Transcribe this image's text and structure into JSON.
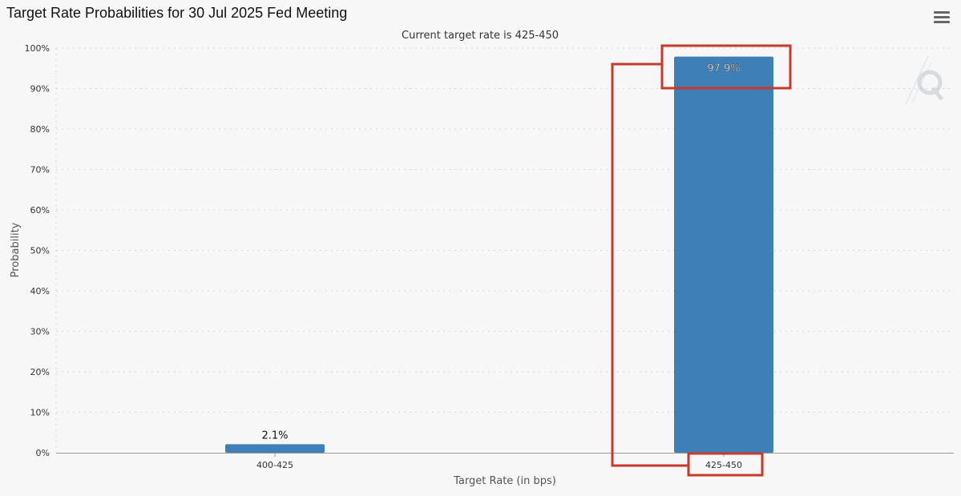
{
  "menu_icon": "hamburger-menu-icon",
  "watermark_icon": "q-logo-icon",
  "colors": {
    "bar": "#3f7fb8",
    "highlight": "#c8392b",
    "grid": "#d6d6d6",
    "axis": "#666666"
  },
  "chart_data": {
    "type": "bar",
    "title": "Target Rate Probabilities for 30 Jul 2025 Fed Meeting",
    "subtitle": "Current target rate is 425-450",
    "xlabel": "Target Rate (in bps)",
    "ylabel": "Probability",
    "categories": [
      "400-425",
      "425-450"
    ],
    "values": [
      2.1,
      97.9
    ],
    "data_labels": [
      "2.1%",
      "97.9%"
    ],
    "ylim": [
      0,
      100
    ],
    "yticks": [
      "0%",
      "10%",
      "20%",
      "30%",
      "40%",
      "50%",
      "60%",
      "70%",
      "80%",
      "90%",
      "100%"
    ],
    "grid": true,
    "highlighted_category": "425-450"
  }
}
